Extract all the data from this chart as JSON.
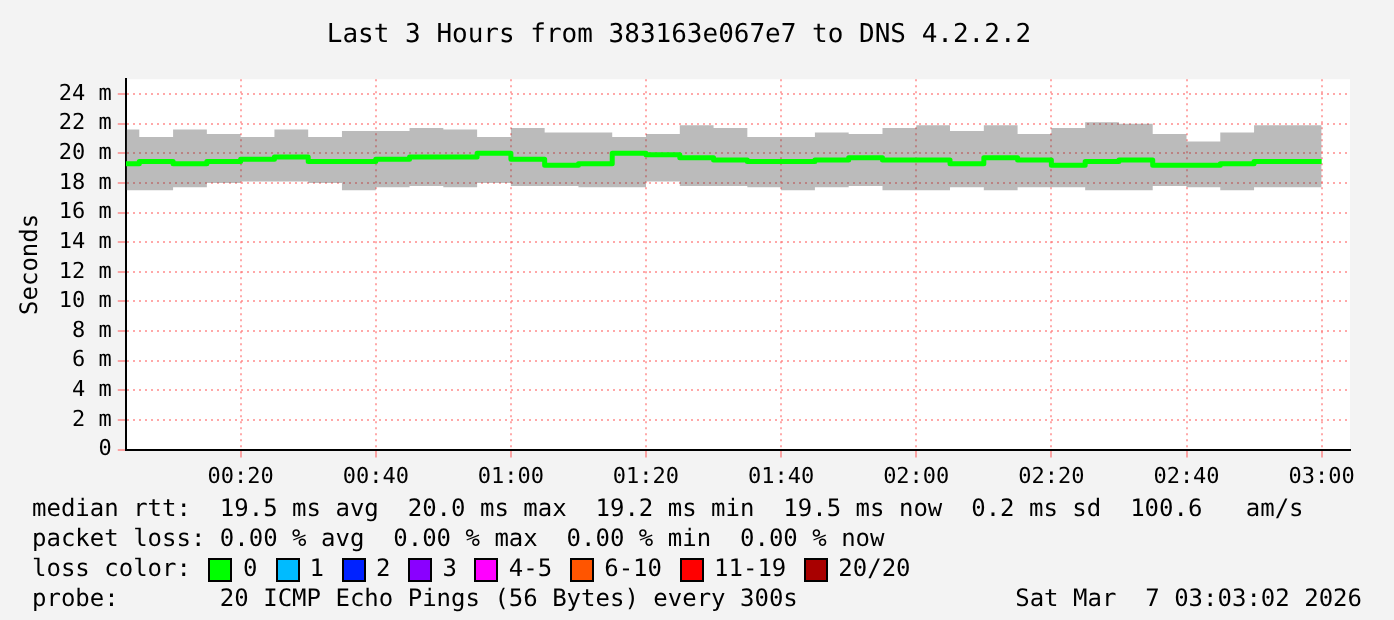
{
  "chart_data": {
    "type": "step",
    "title": "Last 3 Hours from 383163e067e7 to DNS 4.2.2.2",
    "ylabel": "Seconds",
    "x": [
      0.05,
      0.0833,
      0.1667,
      0.25,
      0.3333,
      0.4167,
      0.5,
      0.5833,
      0.6667,
      0.75,
      0.8333,
      0.9167,
      1,
      1.0833,
      1.1667,
      1.25,
      1.3333,
      1.4167,
      1.5,
      1.5833,
      1.6667,
      1.75,
      1.8333,
      1.9167,
      2,
      2.0833,
      2.1667,
      2.25,
      2.3333,
      2.4167,
      2.5,
      2.5833,
      2.6667,
      2.75,
      2.8333,
      2.9167,
      3
    ],
    "xlim": [
      0.05,
      3.07
    ],
    "xticks": [
      {
        "value": 0.3333,
        "label": "00:20"
      },
      {
        "value": 0.6667,
        "label": "00:40"
      },
      {
        "value": 1,
        "label": "01:00"
      },
      {
        "value": 1.3333,
        "label": "01:20"
      },
      {
        "value": 1.6667,
        "label": "01:40"
      },
      {
        "value": 2,
        "label": "02:00"
      },
      {
        "value": 2.3333,
        "label": "02:20"
      },
      {
        "value": 2.6667,
        "label": "02:40"
      },
      {
        "value": 3,
        "label": "03:00"
      }
    ],
    "ylim": [
      0,
      25
    ],
    "yticks": [
      0,
      {
        "value": 2,
        "label": "2 m"
      },
      {
        "value": 4,
        "label": "4 m"
      },
      {
        "value": 6,
        "label": "6 m"
      },
      {
        "value": 8,
        "label": "8 m"
      },
      {
        "value": 10,
        "label": "10 m"
      },
      {
        "value": 12,
        "label": "12 m"
      },
      {
        "value": 14,
        "label": "14 m"
      },
      {
        "value": 16,
        "label": "16 m"
      },
      {
        "value": 18,
        "label": "18 m"
      },
      {
        "value": 20,
        "label": "20 m"
      },
      {
        "value": 22,
        "label": "22 m"
      },
      {
        "value": 24,
        "label": "24 m"
      }
    ],
    "grid": true,
    "legend": "bottom",
    "legend_title": "loss color:",
    "series": [
      {
        "name": "0",
        "color": "#00ff00",
        "values": [
          19.3,
          19.3,
          19.45,
          19.3,
          19.45,
          19.6,
          19.75,
          19.45,
          19.45,
          19.6,
          19.75,
          19.75,
          20.0,
          19.6,
          19.2,
          19.3,
          20.0,
          19.9,
          19.7,
          19.55,
          19.45,
          19.45,
          19.55,
          19.7,
          19.55,
          19.55,
          19.3,
          19.7,
          19.55,
          19.2,
          19.45,
          19.55,
          19.2,
          19.2,
          19.3,
          19.45,
          19.45
        ],
        "lower": [
          18.0,
          17.5,
          17.5,
          17.7,
          18.0,
          18.1,
          18.1,
          18.0,
          17.5,
          17.7,
          17.8,
          17.7,
          18.0,
          17.8,
          17.8,
          17.7,
          17.7,
          18.1,
          17.8,
          17.8,
          17.7,
          17.5,
          17.7,
          17.8,
          17.5,
          17.5,
          17.7,
          17.5,
          17.7,
          17.7,
          17.5,
          17.5,
          17.8,
          17.7,
          17.5,
          17.7,
          17.7
        ],
        "upper": [
          22.0,
          21.6,
          21.1,
          21.6,
          21.3,
          21.1,
          21.6,
          21.1,
          21.5,
          21.5,
          21.7,
          21.6,
          21.1,
          21.7,
          21.4,
          21.4,
          21.1,
          21.3,
          21.9,
          21.7,
          21.1,
          21.1,
          21.4,
          21.3,
          21.7,
          21.9,
          21.5,
          21.9,
          21.3,
          21.7,
          22.1,
          22.0,
          21.3,
          20.8,
          21.4,
          21.9,
          21.9
        ]
      },
      {
        "name": "1",
        "color": "#00bbff",
        "values": [
          null,
          null,
          null,
          null,
          null,
          null,
          null,
          null,
          null,
          null,
          null,
          null,
          null,
          null,
          null,
          null,
          null,
          null,
          null,
          null,
          null,
          null,
          null,
          null,
          null,
          null,
          null,
          null,
          null,
          null,
          null,
          null,
          null,
          null,
          null,
          null,
          null
        ]
      },
      {
        "name": "2",
        "color": "#0022ff",
        "values": [
          null,
          null,
          null,
          null,
          null,
          null,
          null,
          null,
          null,
          null,
          null,
          null,
          null,
          null,
          null,
          null,
          null,
          null,
          null,
          null,
          null,
          null,
          null,
          null,
          null,
          null,
          null,
          null,
          null,
          null,
          null,
          null,
          null,
          null,
          null,
          null,
          null
        ]
      },
      {
        "name": "3",
        "color": "#8a00ff",
        "values": [
          null,
          null,
          null,
          null,
          null,
          null,
          null,
          null,
          null,
          null,
          null,
          null,
          null,
          null,
          null,
          null,
          null,
          null,
          null,
          null,
          null,
          null,
          null,
          null,
          null,
          null,
          null,
          null,
          null,
          null,
          null,
          null,
          null,
          null,
          null,
          null,
          null
        ]
      },
      {
        "name": "4-5",
        "color": "#ff00ff",
        "values": [
          null,
          null,
          null,
          null,
          null,
          null,
          null,
          null,
          null,
          null,
          null,
          null,
          null,
          null,
          null,
          null,
          null,
          null,
          null,
          null,
          null,
          null,
          null,
          null,
          null,
          null,
          null,
          null,
          null,
          null,
          null,
          null,
          null,
          null,
          null,
          null,
          null
        ]
      },
      {
        "name": "6-10",
        "color": "#ff5500",
        "values": [
          null,
          null,
          null,
          null,
          null,
          null,
          null,
          null,
          null,
          null,
          null,
          null,
          null,
          null,
          null,
          null,
          null,
          null,
          null,
          null,
          null,
          null,
          null,
          null,
          null,
          null,
          null,
          null,
          null,
          null,
          null,
          null,
          null,
          null,
          null,
          null,
          null
        ]
      },
      {
        "name": "11-19",
        "color": "#ff0000",
        "values": [
          null,
          null,
          null,
          null,
          null,
          null,
          null,
          null,
          null,
          null,
          null,
          null,
          null,
          null,
          null,
          null,
          null,
          null,
          null,
          null,
          null,
          null,
          null,
          null,
          null,
          null,
          null,
          null,
          null,
          null,
          null,
          null,
          null,
          null,
          null,
          null,
          null
        ]
      },
      {
        "name": "20/20",
        "color": "#a80000",
        "values": [
          null,
          null,
          null,
          null,
          null,
          null,
          null,
          null,
          null,
          null,
          null,
          null,
          null,
          null,
          null,
          null,
          null,
          null,
          null,
          null,
          null,
          null,
          null,
          null,
          null,
          null,
          null,
          null,
          null,
          null,
          null,
          null,
          null,
          null,
          null,
          null,
          null
        ]
      }
    ],
    "annotations": [
      "median rtt:  19.5 ms avg  20.0 ms max  19.2 ms min  19.5 ms now  0.2 ms sd  100.6   am/s",
      "packet loss: 0.00 % avg  0.00 % max  0.00 % min  0.00 % now",
      "probe:       20 ICMP Echo Pings (56 Bytes) every 300s",
      "Sat Mar  7 03:03:02 2026"
    ]
  }
}
